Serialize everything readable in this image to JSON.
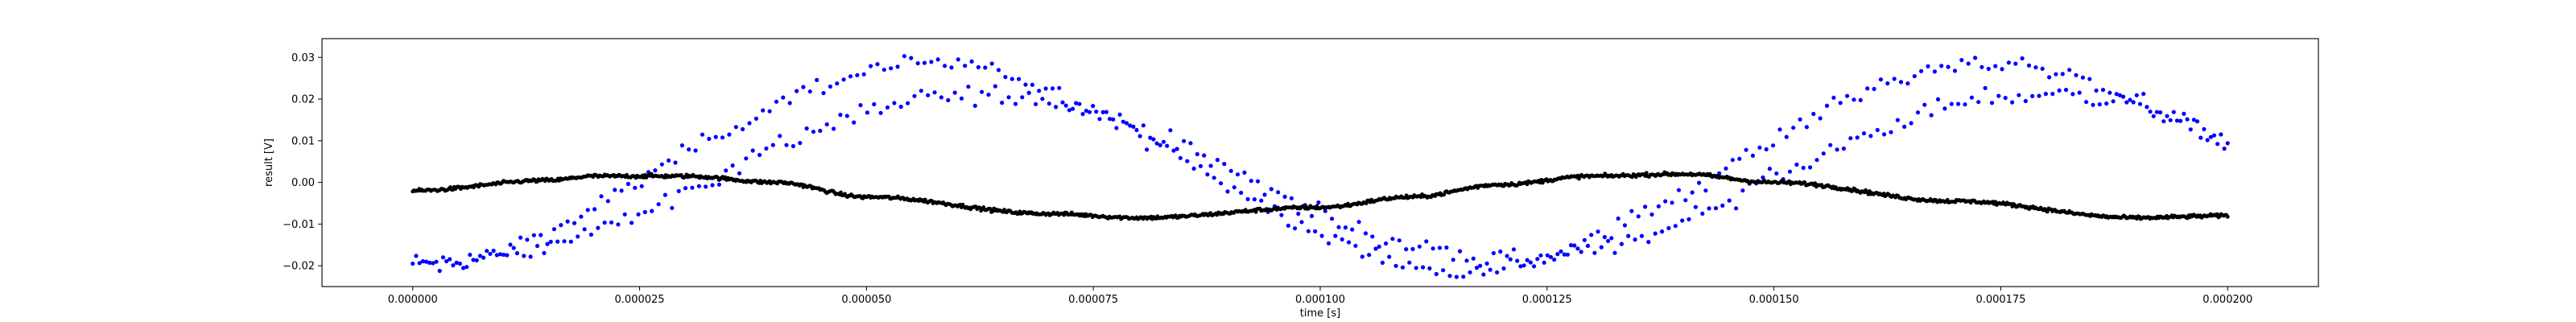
{
  "chart_data": {
    "type": "scatter",
    "title": "",
    "xlabel": "time [s]",
    "ylabel": "result [V]",
    "xlim": [
      -1e-05,
      0.00021
    ],
    "ylim": [
      -0.025,
      0.0345
    ],
    "grid": false,
    "legend": "none",
    "x_ticks": [
      0.0,
      2.5e-05,
      5e-05,
      7.5e-05,
      0.0001,
      0.000125,
      0.00015,
      0.000175,
      0.0002
    ],
    "x_tick_labels": [
      "0.000000",
      "0.000025",
      "0.000050",
      "0.000075",
      "0.000100",
      "0.000125",
      "0.000150",
      "0.000175",
      "0.000200"
    ],
    "y_ticks": [
      -0.02,
      -0.01,
      0.0,
      0.01,
      0.02,
      0.03
    ],
    "y_tick_labels": [
      "−0.02",
      "−0.01",
      "0.00",
      "0.01",
      "0.02",
      "0.03"
    ],
    "x_range": [
      0.0,
      0.0002
    ],
    "series": [
      {
        "color": "#0000ff",
        "marker": "dot",
        "period_s": 0.000117,
        "bands": [
          {
            "amplitude_V": 0.0245,
            "offset_V": 0.0038,
            "phase_shift_s": -1.5e-06
          },
          {
            "amplitude_V": 0.02,
            "offset_V": 0.0012,
            "phase_shift_s": 4e-06
          }
        ],
        "noise_V": 0.0022,
        "point_count": 540
      },
      {
        "color": "#000000",
        "marker": "dot",
        "points": [
          [
            0.0,
            -0.002
          ],
          [
            1.5e-05,
            0.0005
          ],
          [
            2e-05,
            0.0015
          ],
          [
            3e-05,
            0.0015
          ],
          [
            4e-05,
            0.0
          ],
          [
            5e-05,
            -0.0035
          ],
          [
            7e-05,
            -0.0075
          ],
          [
            8e-05,
            -0.0085
          ],
          [
            0.0001,
            -0.006
          ],
          [
            0.00011,
            -0.0035
          ],
          [
            0.00012,
            -0.0005
          ],
          [
            0.00013,
            0.0015
          ],
          [
            0.00014,
            0.002
          ],
          [
            0.00015,
            0.0
          ],
          [
            0.00017,
            -0.0045
          ],
          [
            0.00019,
            -0.0085
          ],
          [
            0.0002,
            -0.008
          ]
        ],
        "sample_count": 1400,
        "noise_V": 0.0004
      }
    ]
  }
}
